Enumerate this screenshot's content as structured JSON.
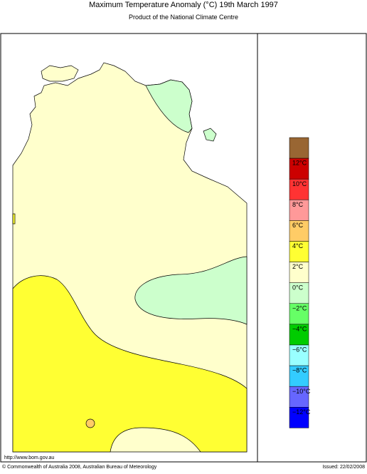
{
  "header": {
    "title": "Maximum Temperature Anomaly (°C)  19th March 1997",
    "subtitle": "Product of the National Climate Centre"
  },
  "legend": {
    "colors": [
      "#996633",
      "#cc0000",
      "#ff3333",
      "#ff9999",
      "#ffcc66",
      "#ffff33",
      "#ffffcc",
      "#ccffcc",
      "#66ff66",
      "#00cc00",
      "#99ffff",
      "#33ccff",
      "#6666ff",
      "#0000ff"
    ],
    "labels": [
      "12°C",
      "10°C",
      "8°C",
      "6°C",
      "4°C",
      "2°C",
      "0°C",
      "−2°C",
      "−4°C",
      "−6°C",
      "−8°C",
      "−10°C",
      "−12°C"
    ]
  },
  "footer": {
    "url": "http://www.bom.gov.au",
    "copyright": "© Commonwealth of Australia 2008, Australian Bureau of Meteorology",
    "issued": "Issued: 22/02/2008"
  }
}
